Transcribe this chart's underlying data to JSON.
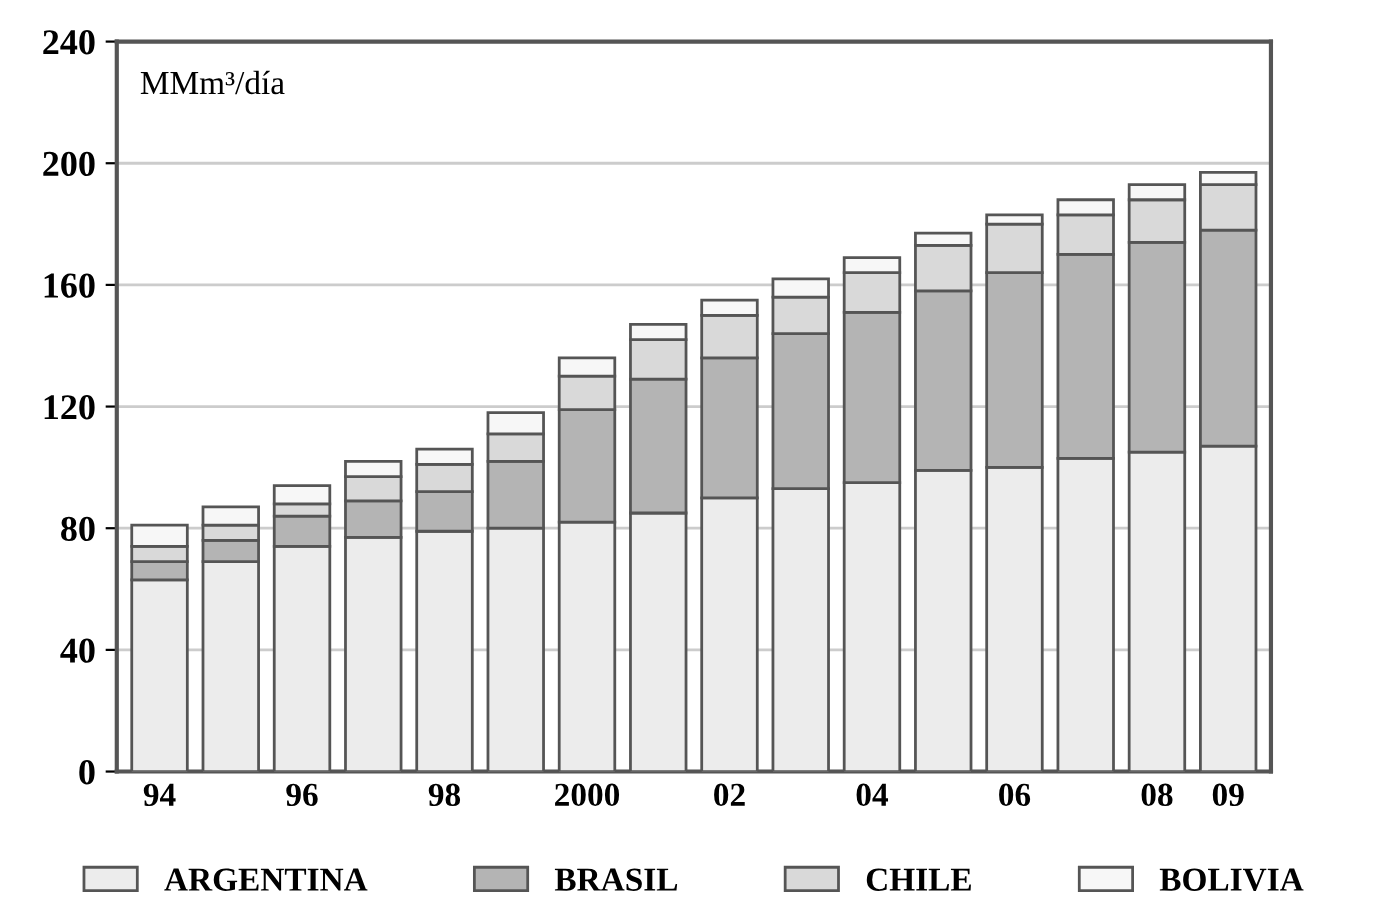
{
  "chart_data": {
    "type": "bar",
    "stacked": true,
    "ylabel": "MMm³/día",
    "categories": [
      "94",
      null,
      "96",
      null,
      "98",
      null,
      "2000",
      null,
      "02",
      null,
      "04",
      null,
      "06",
      null,
      "08",
      "09"
    ],
    "series": [
      {
        "name": "ARGENTINA",
        "color": "#ececec",
        "values": [
          63,
          69,
          74,
          77,
          79,
          80,
          82,
          85,
          90,
          93,
          95,
          99,
          100,
          103,
          105,
          107
        ]
      },
      {
        "name": "BRASIL",
        "color": "#b4b4b4",
        "values": [
          6,
          7,
          10,
          12,
          13,
          22,
          37,
          44,
          46,
          51,
          56,
          59,
          64,
          67,
          69,
          71
        ]
      },
      {
        "name": "CHILE",
        "color": "#d9d9d9",
        "values": [
          5,
          5,
          4,
          8,
          9,
          9,
          11,
          13,
          14,
          12,
          13,
          15,
          16,
          13,
          14,
          15
        ]
      },
      {
        "name": "BOLIVIA",
        "color": "#f7f7f7",
        "values": [
          7,
          6,
          6,
          5,
          5,
          7,
          6,
          5,
          5,
          6,
          5,
          4,
          3,
          5,
          5,
          4
        ]
      }
    ],
    "ylim": [
      0,
      240
    ],
    "yticks": [
      0,
      40,
      80,
      120,
      160,
      200,
      240
    ],
    "grid": "y",
    "legend": "bottom"
  }
}
